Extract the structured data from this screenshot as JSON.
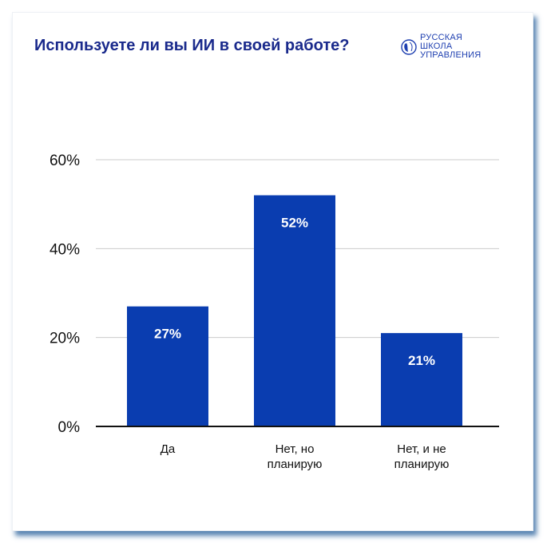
{
  "logo": {
    "lines": [
      "РУССКАЯ",
      "ШКОЛА",
      "УПРАВЛЕНИЯ"
    ]
  },
  "colors": {
    "bar": "#0a3db0",
    "title": "#1a2a8c",
    "logo": "#1e3fb0",
    "grid": "#cccccc"
  },
  "chart_data": {
    "type": "bar",
    "title": "Используете ли вы ИИ в своей работе?",
    "categories": [
      [
        "Да"
      ],
      [
        "Нет, но",
        "планирую"
      ],
      [
        "Нет, и не",
        "планирую"
      ]
    ],
    "values": [
      27,
      52,
      21
    ],
    "data_labels": [
      "27%",
      "52%",
      "21%"
    ],
    "yticks": [
      0,
      20,
      40,
      60
    ],
    "ytick_labels": [
      "0%",
      "20%",
      "40%",
      "60%"
    ],
    "ylim": [
      0,
      60
    ],
    "grid": true,
    "xlabel": "",
    "ylabel": ""
  }
}
